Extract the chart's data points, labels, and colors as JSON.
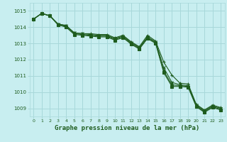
{
  "title": "Graphe pression niveau de la mer (hPa)",
  "bg_color": "#c8eef0",
  "grid_color": "#a8d8da",
  "line_color": "#1e5c1e",
  "xlim": [
    -0.5,
    23.5
  ],
  "ylim": [
    1008.5,
    1015.5
  ],
  "yticks": [
    1009,
    1010,
    1011,
    1012,
    1013,
    1014,
    1015
  ],
  "xticks": [
    0,
    1,
    2,
    3,
    4,
    5,
    6,
    7,
    8,
    9,
    10,
    11,
    12,
    13,
    14,
    15,
    16,
    17,
    18,
    19,
    20,
    21,
    22,
    23
  ],
  "series": [
    [
      1014.5,
      1014.85,
      1014.7,
      1014.2,
      1014.1,
      1013.65,
      1013.6,
      1013.6,
      1013.55,
      1013.55,
      1013.35,
      1013.5,
      1013.1,
      1012.8,
      1013.5,
      1013.15,
      1011.85,
      1011.05,
      1010.55,
      1010.5,
      1009.25,
      1008.9,
      1009.2,
      1009.05
    ],
    [
      1014.5,
      1014.85,
      1014.7,
      1014.2,
      1014.1,
      1013.65,
      1013.6,
      1013.55,
      1013.5,
      1013.5,
      1013.3,
      1013.45,
      1013.05,
      1012.75,
      1013.4,
      1013.1,
      1011.5,
      1010.6,
      1010.45,
      1010.4,
      1009.2,
      1008.85,
      1009.15,
      1009.0
    ],
    [
      1014.5,
      1014.85,
      1014.7,
      1014.15,
      1014.05,
      1013.6,
      1013.55,
      1013.5,
      1013.45,
      1013.45,
      1013.25,
      1013.4,
      1013.0,
      1012.7,
      1013.35,
      1013.05,
      1011.3,
      1010.45,
      1010.4,
      1010.35,
      1009.15,
      1008.8,
      1009.1,
      1008.95
    ],
    [
      1014.5,
      1014.85,
      1014.7,
      1014.15,
      1014.0,
      1013.55,
      1013.5,
      1013.45,
      1013.4,
      1013.4,
      1013.2,
      1013.35,
      1012.95,
      1012.65,
      1013.3,
      1013.0,
      1011.2,
      1010.35,
      1010.35,
      1010.3,
      1009.1,
      1008.75,
      1009.05,
      1008.9
    ]
  ]
}
